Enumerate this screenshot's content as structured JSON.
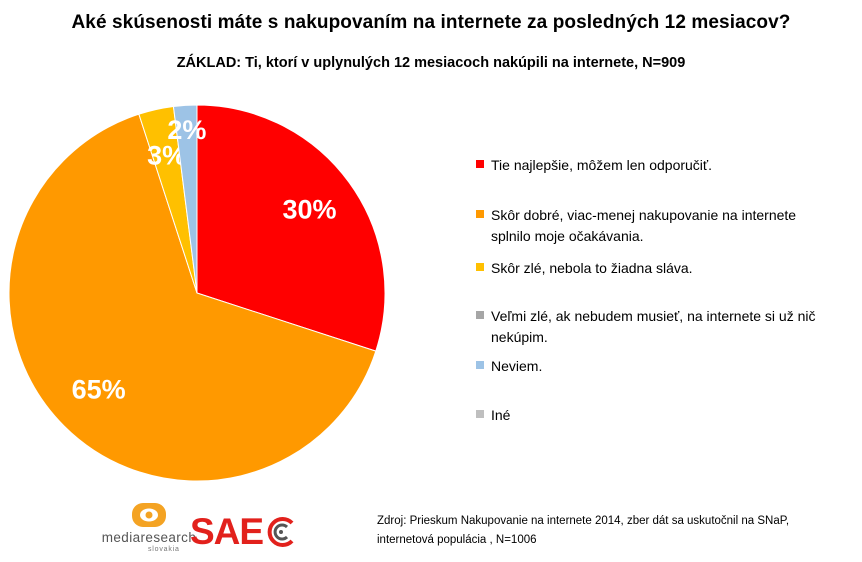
{
  "title": "Aké skúsenosti máte s nakupovaním na internete za posledných 12 mesiacov?",
  "subtitle": "ZÁKLAD: Ti, ktorí v uplynulých 12 mesiacoch nakúpili na internete, N=909",
  "chart_data": {
    "type": "pie",
    "title": "Aké skúsenosti máte s nakupovaním na internete za posledných 12 mesiacov?",
    "subtitle": "ZÁKLAD: Ti, ktorí v uplynulých 12 mesiacoch nakúpili na internete, N=909",
    "legend_position": "right",
    "slices": [
      {
        "label": "Tie najlepšie,  môžem len odporučiť.",
        "value": 30,
        "display": "30%",
        "color": "#ff0000"
      },
      {
        "label": "Skôr dobré, viac-menej nakupovanie na internete splnilo moje očakávania.",
        "value": 65,
        "display": "65%",
        "color": "#ff9900"
      },
      {
        "label": "Skôr zlé, nebola to žiadna sláva.",
        "value": 3,
        "display": "3%",
        "color": "#ffc000"
      },
      {
        "label": "Veľmi zlé, ak nebudem musieť, na internete si už nič nekúpim.",
        "value": 0,
        "display": "",
        "color": "#a6a6a6"
      },
      {
        "label": "Neviem.",
        "value": 2,
        "display": "2%",
        "color": "#9dc3e6"
      },
      {
        "label": "Iné",
        "value": 0,
        "display": "",
        "color": "#bfbfbf"
      }
    ]
  },
  "source": {
    "line1": "Zdroj:  Prieskum Nakupovanie na internete 2014, zber dát sa uskutočnil na SNaP,",
    "line2": "internetová populácia , N=1006"
  },
  "logos": {
    "mediaresearch": "mediaresearch",
    "mediaresearch_sub": "slovakia",
    "sae": "SAE"
  }
}
